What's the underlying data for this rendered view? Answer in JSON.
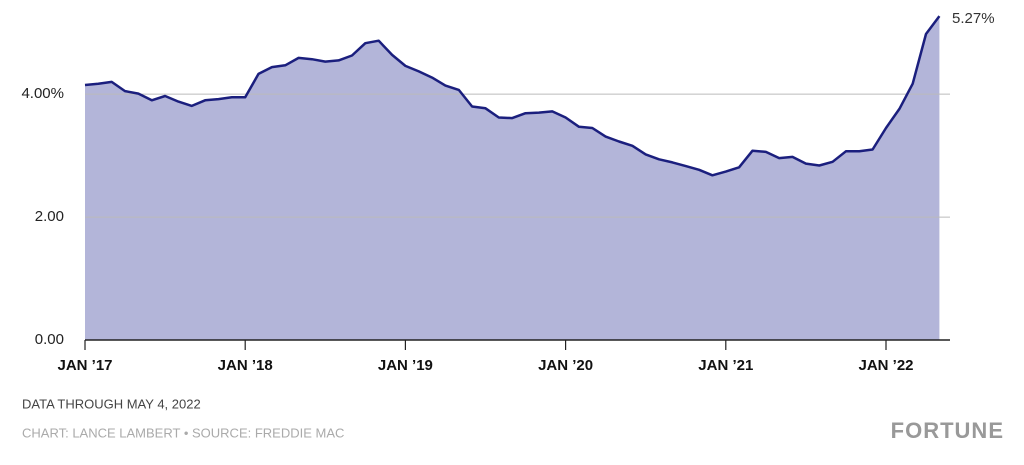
{
  "chart_data": {
    "type": "area",
    "x": [
      "2017-01",
      "2017-02",
      "2017-03",
      "2017-04",
      "2017-05",
      "2017-06",
      "2017-07",
      "2017-08",
      "2017-09",
      "2017-10",
      "2017-11",
      "2017-12",
      "2018-01",
      "2018-02",
      "2018-03",
      "2018-04",
      "2018-05",
      "2018-06",
      "2018-07",
      "2018-08",
      "2018-09",
      "2018-10",
      "2018-11",
      "2018-12",
      "2019-01",
      "2019-02",
      "2019-03",
      "2019-04",
      "2019-05",
      "2019-06",
      "2019-07",
      "2019-08",
      "2019-09",
      "2019-10",
      "2019-11",
      "2019-12",
      "2020-01",
      "2020-02",
      "2020-03",
      "2020-04",
      "2020-05",
      "2020-06",
      "2020-07",
      "2020-08",
      "2020-09",
      "2020-10",
      "2020-11",
      "2020-12",
      "2021-01",
      "2021-02",
      "2021-03",
      "2021-04",
      "2021-05",
      "2021-06",
      "2021-07",
      "2021-08",
      "2021-09",
      "2021-10",
      "2021-11",
      "2021-12",
      "2022-01",
      "2022-02",
      "2022-03",
      "2022-04",
      "2022-05"
    ],
    "values": [
      4.15,
      4.17,
      4.2,
      4.05,
      4.01,
      3.9,
      3.97,
      3.88,
      3.81,
      3.9,
      3.92,
      3.95,
      3.95,
      4.33,
      4.44,
      4.47,
      4.59,
      4.57,
      4.53,
      4.55,
      4.63,
      4.83,
      4.87,
      4.64,
      4.46,
      4.37,
      4.27,
      4.14,
      4.07,
      3.8,
      3.77,
      3.62,
      3.61,
      3.69,
      3.7,
      3.72,
      3.62,
      3.47,
      3.45,
      3.31,
      3.23,
      3.16,
      3.02,
      2.94,
      2.89,
      2.83,
      2.77,
      2.68,
      2.74,
      2.81,
      3.08,
      3.06,
      2.96,
      2.98,
      2.87,
      2.84,
      2.9,
      3.07,
      3.07,
      3.1,
      3.45,
      3.76,
      4.17,
      4.98,
      5.27
    ],
    "last_label": "5.27%",
    "color": "#1b1f7e",
    "fill": "#b3b5d9",
    "xlim": [
      "2017-01",
      "2022-05"
    ],
    "xticks": [
      {
        "value": "2017-01",
        "label": "JAN ’17"
      },
      {
        "value": "2018-01",
        "label": "JAN ’18"
      },
      {
        "value": "2019-01",
        "label": "JAN ’19"
      },
      {
        "value": "2020-01",
        "label": "JAN ’20"
      },
      {
        "value": "2021-01",
        "label": "JAN ’21"
      },
      {
        "value": "2022-01",
        "label": "JAN ’22"
      }
    ],
    "ylim": [
      0,
      5.5
    ],
    "yticks": [
      {
        "value": 0,
        "label": "0.00"
      },
      {
        "value": 2,
        "label": "2.00"
      },
      {
        "value": 4,
        "label": "4.00%"
      }
    ],
    "grid": true
  },
  "footer": {
    "note": "DATA THROUGH MAY 4, 2022",
    "credit": "CHART: LANCE LAMBERT • SOURCE: FREDDIE MAC",
    "brand": "FORTUNE"
  }
}
